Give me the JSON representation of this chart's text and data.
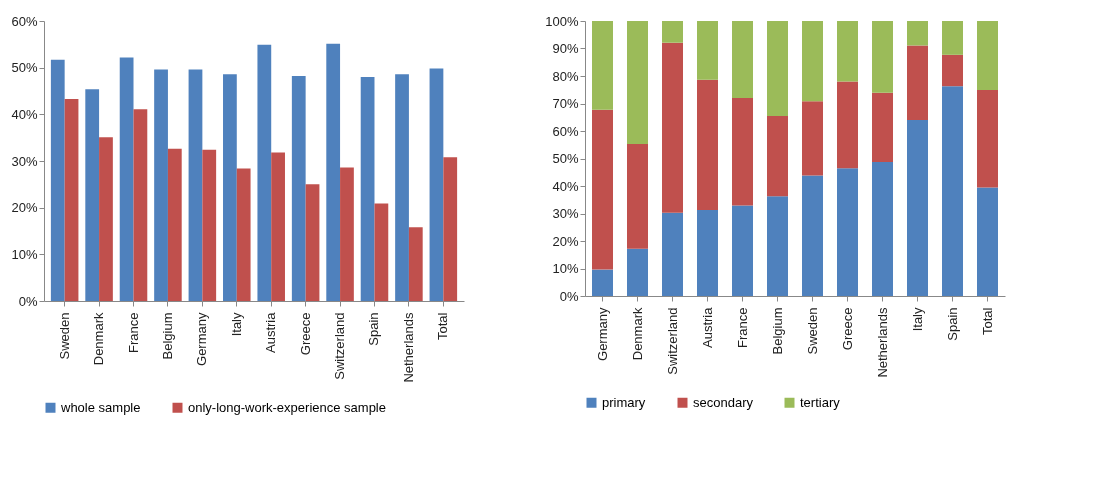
{
  "chart_data": [
    {
      "type": "bar",
      "categories": [
        "Sweden",
        "Denmark",
        "France",
        "Belgium",
        "Germany",
        "Italy",
        "Austria",
        "Greece",
        "Switzerland",
        "Spain",
        "Netherlands",
        "Total"
      ],
      "series": [
        {
          "name": "whole sample",
          "color": "#4f81bd",
          "values": [
            51.7,
            45.4,
            52.2,
            49.6,
            49.6,
            48.6,
            54.9,
            48.2,
            55.1,
            48.0,
            48.6,
            49.8
          ]
        },
        {
          "name": "only-long-work-experience sample",
          "color": "#c0504d",
          "values": [
            43.3,
            35.1,
            41.1,
            32.6,
            32.4,
            28.4,
            31.8,
            25.0,
            28.6,
            20.9,
            15.8,
            30.8
          ]
        }
      ],
      "ylim": [
        0,
        60
      ],
      "yticks": [
        {
          "value": 0,
          "label": "0%"
        },
        {
          "value": 10,
          "label": "10%"
        },
        {
          "value": 20,
          "label": "20%"
        },
        {
          "value": 30,
          "label": "30%"
        },
        {
          "value": 40,
          "label": "40%"
        },
        {
          "value": 50,
          "label": "50%"
        },
        {
          "value": 60,
          "label": "60%"
        }
      ],
      "grid": false,
      "legend": "bottom"
    },
    {
      "type": "bar",
      "stacked": true,
      "categories": [
        "Germany",
        "Denmark",
        "Switzerland",
        "Austria",
        "France",
        "Belgium",
        "Sweden",
        "Greece",
        "Netherlands",
        "Italy",
        "Spain",
        "Total"
      ],
      "series": [
        {
          "name": "primary",
          "color": "#4f81bd",
          "values": [
            9.6,
            17.2,
            30.3,
            31.3,
            32.9,
            36.3,
            43.8,
            46.5,
            48.7,
            64.0,
            76.3,
            39.5
          ]
        },
        {
          "name": "secondary",
          "color": "#c0504d",
          "values": [
            58.1,
            38.1,
            61.8,
            47.3,
            39.1,
            29.2,
            27.0,
            31.5,
            25.2,
            27.1,
            11.4,
            35.4
          ]
        },
        {
          "name": "tertiary",
          "color": "#9bbb59",
          "values": [
            32.3,
            44.7,
            7.9,
            21.4,
            28.0,
            34.5,
            29.2,
            22.0,
            26.1,
            8.9,
            12.3,
            25.1
          ]
        }
      ],
      "ylim": [
        0,
        100
      ],
      "yticks": [
        {
          "value": 0,
          "label": "0%"
        },
        {
          "value": 10,
          "label": "10%"
        },
        {
          "value": 20,
          "label": "20%"
        },
        {
          "value": 30,
          "label": "30%"
        },
        {
          "value": 40,
          "label": "40%"
        },
        {
          "value": 50,
          "label": "50%"
        },
        {
          "value": 60,
          "label": "60%"
        },
        {
          "value": 70,
          "label": "70%"
        },
        {
          "value": 80,
          "label": "80%"
        },
        {
          "value": 90,
          "label": "90%"
        },
        {
          "value": 100,
          "label": "100%"
        }
      ],
      "grid": false,
      "legend": "bottom"
    }
  ]
}
